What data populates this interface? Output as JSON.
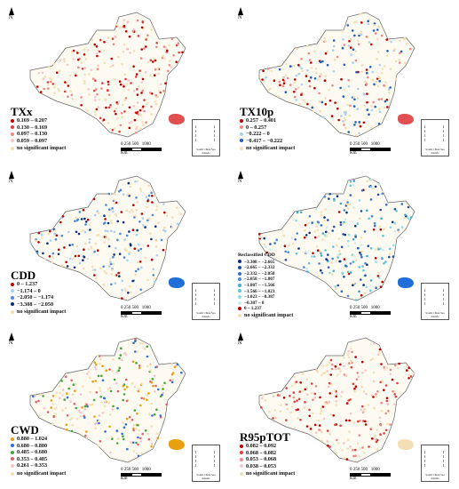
{
  "map_data": {
    "panels": [
      {
        "id": "txx",
        "title": "TXx",
        "legend_heading": "",
        "legend": [
          {
            "label": "0.169 – 0.207",
            "color": "#c00000"
          },
          {
            "label": "0.130 – 0.169",
            "color": "#e04040"
          },
          {
            "label": "0.097 – 0.130",
            "color": "#f08888"
          },
          {
            "label": "0.059 – 0.097",
            "color": "#f6c6c6"
          }
        ],
        "no_sig": "no significant impact",
        "no_sig_color": "#f3dfb5",
        "accent": "#d83030"
      },
      {
        "id": "tx10p",
        "title": "TX10p",
        "legend_heading": "",
        "legend": [
          {
            "label": "0.257 – 0.401",
            "color": "#c00000"
          },
          {
            "label": "0 – 0.257",
            "color": "#f08888"
          },
          {
            "label": "−0.222 – 0",
            "color": "#a8d0f0"
          },
          {
            "label": "−0.417 – −0.222",
            "color": "#1f5fbf"
          }
        ],
        "no_sig": "no significant impact",
        "no_sig_color": "#f3dfb5",
        "accent": "#d83030"
      },
      {
        "id": "cdd",
        "title": "CDD",
        "legend_heading": "",
        "legend": [
          {
            "label": "0 – 1.237",
            "color": "#c00000"
          },
          {
            "label": "−1.174 – 0",
            "color": "#a8d0f0"
          },
          {
            "label": "−2.050 – −1.174",
            "color": "#4a8ad8"
          },
          {
            "label": "−3.308 – −2.050",
            "color": "#0b2f7a"
          }
        ],
        "no_sig": "no significant impact",
        "no_sig_color": "#f3dfb5",
        "accent": "#1f6fd8"
      },
      {
        "id": "cdd-reclassified",
        "title": "",
        "legend_heading": "Reclassified CDD",
        "legend": [
          {
            "label": "−3.308 – −2.665",
            "color": "#0b2f7a"
          },
          {
            "label": "−2.665 – −2.332",
            "color": "#1f4fa8"
          },
          {
            "label": "−2.332 – −2.058",
            "color": "#2f6fc8"
          },
          {
            "label": "−2.058 – −1.807",
            "color": "#4a8ad8"
          },
          {
            "label": "−1.807 – −1.566",
            "color": "#3fb0c8"
          },
          {
            "label": "−1.566 – −1.023",
            "color": "#5ac8d8"
          },
          {
            "label": "−1.023 – −0.387",
            "color": "#90dce4"
          },
          {
            "label": "−0.387 – 0",
            "color": "#c6eef0"
          },
          {
            "label": "0 – 1.237",
            "color": "#c00000"
          }
        ],
        "no_sig": "no significant impact",
        "no_sig_color": "#f3dfb5",
        "accent": "#1f6fd8"
      },
      {
        "id": "cwd",
        "title": "CWD",
        "legend_heading": "",
        "legend": [
          {
            "label": "0.880 – 1.024",
            "color": "#e8a010"
          },
          {
            "label": "0.680 – 0.880",
            "color": "#2f6fd8"
          },
          {
            "label": "0.485 – 0.680",
            "color": "#3fa83a"
          },
          {
            "label": "0.353 – 0.485",
            "color": "#e06070"
          },
          {
            "label": "0.261 – 0.353",
            "color": "#f2c3c8"
          }
        ],
        "no_sig": "no significant impact",
        "no_sig_color": "#f3dfb5",
        "accent": "#e8a010"
      },
      {
        "id": "r95ptot",
        "title": "R95pTOT",
        "legend_heading": "",
        "legend": [
          {
            "label": "0.082 – 0.092",
            "color": "#c00000"
          },
          {
            "label": "0.068 – 0.082",
            "color": "#e04040"
          },
          {
            "label": "0.053 – 0.068",
            "color": "#f08888"
          },
          {
            "label": "0.038 – 0.053",
            "color": "#f6c6c6"
          }
        ],
        "no_sig": "no significant impact",
        "no_sig_color": "#f3dfb5",
        "accent": "#f3dfb5"
      }
    ],
    "north_label": "N",
    "scale_ticks": [
      "0",
      "250",
      "500",
      "1000"
    ],
    "scale_unit": "Km",
    "inset_caption": "South China Sea Islands"
  }
}
